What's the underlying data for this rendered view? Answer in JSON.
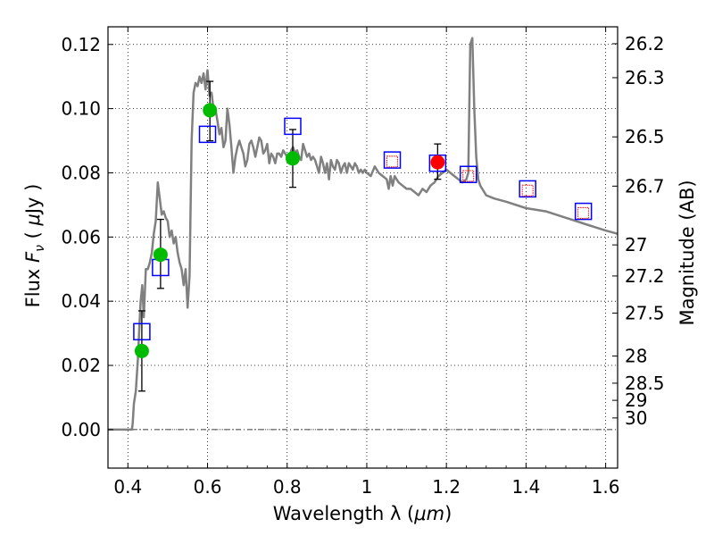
{
  "chart_data": {
    "type": "scatter",
    "title": "",
    "xlabel_prefix": "Wavelength  λ (",
    "xlabel_unit": "μm",
    "xlabel_suffix": ")",
    "ylabel_prefix": "Flux  ",
    "ylabel_symbol": "F",
    "ylabel_sub": "ν",
    "ylabel_paren_open": "  ( ",
    "ylabel_mu": "μ",
    "ylabel_suffix": "Jy )",
    "y2label": "Magnitude (AB)",
    "xlim": [
      0.35,
      1.63
    ],
    "ylim": [
      -0.012,
      0.1255
    ],
    "grid": true,
    "x_ticks": [
      {
        "value": 0.4,
        "label": "0.4"
      },
      {
        "value": 0.6,
        "label": "0.6"
      },
      {
        "value": 0.8,
        "label": "0.8"
      },
      {
        "value": 1.0,
        "label": "1"
      },
      {
        "value": 1.2,
        "label": "1.2"
      },
      {
        "value": 1.4,
        "label": "1.4"
      },
      {
        "value": 1.6,
        "label": "1.6"
      }
    ],
    "y_ticks": [
      {
        "value": 0.0,
        "label": "0.00"
      },
      {
        "value": 0.02,
        "label": "0.02"
      },
      {
        "value": 0.04,
        "label": "0.04"
      },
      {
        "value": 0.06,
        "label": "0.06"
      },
      {
        "value": 0.08,
        "label": "0.08"
      },
      {
        "value": 0.1,
        "label": "0.10"
      },
      {
        "value": 0.12,
        "label": "0.12"
      }
    ],
    "magnitude_ticks": [
      {
        "mag": 26.2,
        "label": "26.2"
      },
      {
        "mag": 26.3,
        "label": "26.3"
      },
      {
        "mag": 26.5,
        "label": "26.5"
      },
      {
        "mag": 26.7,
        "label": "26.7"
      },
      {
        "mag": 27.0,
        "label": "27"
      },
      {
        "mag": 27.2,
        "label": "27.2"
      },
      {
        "mag": 27.5,
        "label": "27.5"
      },
      {
        "mag": 28.0,
        "label": "28"
      },
      {
        "mag": 28.5,
        "label": "28.5"
      },
      {
        "mag": 29.0,
        "label": "29"
      },
      {
        "mag": 30.0,
        "label": "30"
      }
    ],
    "sed_model": {
      "name": "model SED",
      "color": "#808080",
      "x": [
        0.35,
        0.41,
        0.412,
        0.415,
        0.42,
        0.425,
        0.428,
        0.432,
        0.436,
        0.44,
        0.445,
        0.45,
        0.455,
        0.46,
        0.465,
        0.47,
        0.475,
        0.48,
        0.485,
        0.49,
        0.495,
        0.5,
        0.505,
        0.51,
        0.515,
        0.52,
        0.525,
        0.53,
        0.535,
        0.54,
        0.545,
        0.55,
        0.555,
        0.56,
        0.565,
        0.57,
        0.575,
        0.58,
        0.585,
        0.59,
        0.595,
        0.6,
        0.605,
        0.61,
        0.615,
        0.62,
        0.625,
        0.63,
        0.635,
        0.64,
        0.645,
        0.65,
        0.655,
        0.66,
        0.665,
        0.67,
        0.675,
        0.68,
        0.685,
        0.69,
        0.695,
        0.7,
        0.705,
        0.71,
        0.715,
        0.72,
        0.725,
        0.73,
        0.735,
        0.74,
        0.745,
        0.75,
        0.755,
        0.76,
        0.765,
        0.77,
        0.775,
        0.78,
        0.785,
        0.79,
        0.795,
        0.8,
        0.805,
        0.81,
        0.815,
        0.82,
        0.825,
        0.83,
        0.835,
        0.84,
        0.845,
        0.85,
        0.855,
        0.86,
        0.865,
        0.87,
        0.875,
        0.88,
        0.885,
        0.89,
        0.895,
        0.9,
        0.905,
        0.91,
        0.915,
        0.92,
        0.925,
        0.93,
        0.935,
        0.94,
        0.945,
        0.95,
        0.955,
        0.96,
        0.965,
        0.97,
        0.975,
        0.98,
        0.985,
        0.99,
        0.995,
        1.0,
        1.01,
        1.02,
        1.03,
        1.04,
        1.05,
        1.055,
        1.06,
        1.065,
        1.07,
        1.08,
        1.09,
        1.1,
        1.11,
        1.12,
        1.13,
        1.14,
        1.15,
        1.16,
        1.17,
        1.18,
        1.19,
        1.2,
        1.21,
        1.22,
        1.23,
        1.24,
        1.25,
        1.255,
        1.26,
        1.265,
        1.27,
        1.275,
        1.28,
        1.285,
        1.29,
        1.3,
        1.32,
        1.35,
        1.4,
        1.45,
        1.5,
        1.55,
        1.6,
        1.63
      ],
      "y": [
        0.0,
        0.0,
        0.002,
        0.008,
        0.012,
        0.022,
        0.03,
        0.04,
        0.045,
        0.035,
        0.05,
        0.05,
        0.052,
        0.055,
        0.061,
        0.065,
        0.077,
        0.072,
        0.067,
        0.068,
        0.066,
        0.065,
        0.06,
        0.062,
        0.058,
        0.06,
        0.055,
        0.052,
        0.05,
        0.045,
        0.05,
        0.038,
        0.048,
        0.09,
        0.105,
        0.108,
        0.107,
        0.11,
        0.108,
        0.111,
        0.106,
        0.112,
        0.104,
        0.105,
        0.1,
        0.1,
        0.096,
        0.092,
        0.094,
        0.088,
        0.09,
        0.1,
        0.095,
        0.088,
        0.08,
        0.085,
        0.088,
        0.09,
        0.088,
        0.086,
        0.082,
        0.084,
        0.089,
        0.09,
        0.088,
        0.085,
        0.088,
        0.091,
        0.09,
        0.086,
        0.087,
        0.089,
        0.083,
        0.086,
        0.085,
        0.083,
        0.086,
        0.086,
        0.085,
        0.087,
        0.086,
        0.085,
        0.084,
        0.087,
        0.088,
        0.086,
        0.087,
        0.085,
        0.084,
        0.089,
        0.087,
        0.085,
        0.086,
        0.084,
        0.085,
        0.084,
        0.082,
        0.08,
        0.085,
        0.083,
        0.08,
        0.083,
        0.078,
        0.084,
        0.082,
        0.081,
        0.084,
        0.083,
        0.08,
        0.082,
        0.083,
        0.08,
        0.083,
        0.082,
        0.081,
        0.083,
        0.082,
        0.08,
        0.081,
        0.08,
        0.081,
        0.08,
        0.079,
        0.082,
        0.08,
        0.079,
        0.078,
        0.075,
        0.079,
        0.076,
        0.079,
        0.077,
        0.076,
        0.075,
        0.075,
        0.074,
        0.073,
        0.075,
        0.074,
        0.076,
        0.077,
        0.079,
        0.08,
        0.081,
        0.08,
        0.079,
        0.078,
        0.077,
        0.078,
        0.08,
        0.12,
        0.122,
        0.1,
        0.085,
        0.078,
        0.076,
        0.075,
        0.073,
        0.072,
        0.071,
        0.069,
        0.068,
        0.066,
        0.064,
        0.062,
        0.061
      ]
    },
    "observed_detections": {
      "name": "observed fluxes",
      "color": "#00bb00",
      "points": [
        {
          "x": 0.435,
          "y": 0.0245,
          "err_low": 0.012,
          "err_high": 0.037
        },
        {
          "x": 0.482,
          "y": 0.0545,
          "err_low": 0.044,
          "err_high": 0.0655
        },
        {
          "x": 0.606,
          "y": 0.0995,
          "err_low": 0.09,
          "err_high": 0.1085
        },
        {
          "x": 0.814,
          "y": 0.0845,
          "err_low": 0.0755,
          "err_high": 0.0935
        }
      ]
    },
    "observed_extra": {
      "name": "observed flux (red)",
      "color": "#ff0000",
      "points": [
        {
          "x": 1.178,
          "y": 0.0833,
          "err_low": 0.078,
          "err_high": 0.089
        }
      ]
    },
    "model_bandpass": {
      "name": "model band fluxes",
      "color": "#0000ff",
      "points": [
        {
          "x": 0.435,
          "y": 0.0305
        },
        {
          "x": 0.482,
          "y": 0.0505
        },
        {
          "x": 0.6,
          "y": 0.092
        },
        {
          "x": 0.814,
          "y": 0.0945
        },
        {
          "x": 1.064,
          "y": 0.084
        },
        {
          "x": 1.178,
          "y": 0.083
        },
        {
          "x": 1.255,
          "y": 0.0795
        },
        {
          "x": 1.404,
          "y": 0.075
        },
        {
          "x": 1.544,
          "y": 0.068
        }
      ]
    },
    "model_bandpass_inner": {
      "name": "model band fluxes (inner)",
      "color": "#ff0000",
      "points": [
        {
          "x": 1.064,
          "y": 0.0835
        },
        {
          "x": 1.255,
          "y": 0.079
        },
        {
          "x": 1.404,
          "y": 0.0745
        },
        {
          "x": 1.544,
          "y": 0.0675
        }
      ]
    }
  }
}
